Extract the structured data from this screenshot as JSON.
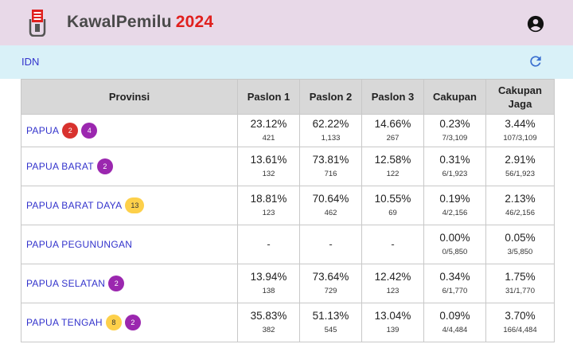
{
  "app": {
    "name": "KawalPemilu",
    "year": "2024",
    "colors": {
      "header_bg": "#e8d9e8",
      "subbar_bg": "#d9f1f8",
      "year": "#e0201e",
      "link": "#3333cc"
    },
    "icons": {
      "logo": "ballot-box-icon",
      "account": "account-circle-icon",
      "refresh": "refresh-icon"
    }
  },
  "breadcrumb": {
    "root": "IDN"
  },
  "table": {
    "headers": {
      "provinsi": "Provinsi",
      "paslon1": "Paslon 1",
      "paslon2": "Paslon 2",
      "paslon3": "Paslon 3",
      "cakupan": "Cakupan",
      "cakupan_jaga_1": "Cakupan",
      "cakupan_jaga_2": "Jaga"
    },
    "rows": [
      {
        "name": "PAPUA",
        "badges": [
          {
            "text": "2",
            "color": "red"
          },
          {
            "text": "4",
            "color": "purple"
          }
        ],
        "p1": "23.12%",
        "p1c": "421",
        "p2": "62.22%",
        "p2c": "1,133",
        "p3": "14.66%",
        "p3c": "267",
        "cak": "0.23%",
        "cakc": "7/3,109",
        "jaga": "3.44%",
        "jagac": "107/3,109"
      },
      {
        "name": "PAPUA BARAT",
        "badges": [
          {
            "text": "2",
            "color": "purple"
          }
        ],
        "p1": "13.61%",
        "p1c": "132",
        "p2": "73.81%",
        "p2c": "716",
        "p3": "12.58%",
        "p3c": "122",
        "cak": "0.31%",
        "cakc": "6/1,923",
        "jaga": "2.91%",
        "jagac": "56/1,923"
      },
      {
        "name": "PAPUA BARAT DAYA",
        "badges": [
          {
            "text": "13",
            "color": "yellow"
          }
        ],
        "p1": "18.81%",
        "p1c": "123",
        "p2": "70.64%",
        "p2c": "462",
        "p3": "10.55%",
        "p3c": "69",
        "cak": "0.19%",
        "cakc": "4/2,156",
        "jaga": "2.13%",
        "jagac": "46/2,156"
      },
      {
        "name": "PAPUA PEGUNUNGAN",
        "badges": [],
        "p1": "-",
        "p2": "-",
        "p3": "-",
        "cak": "0.00%",
        "cakc": "0/5,850",
        "jaga": "0.05%",
        "jagac": "3/5,850"
      },
      {
        "name": "PAPUA SELATAN",
        "badges": [
          {
            "text": "2",
            "color": "purple"
          }
        ],
        "p1": "13.94%",
        "p1c": "138",
        "p2": "73.64%",
        "p2c": "729",
        "p3": "12.42%",
        "p3c": "123",
        "cak": "0.34%",
        "cakc": "6/1,770",
        "jaga": "1.75%",
        "jagac": "31/1,770"
      },
      {
        "name": "PAPUA TENGAH",
        "badges": [
          {
            "text": "8",
            "color": "yellow"
          },
          {
            "text": "2",
            "color": "purple"
          }
        ],
        "p1": "35.83%",
        "p1c": "382",
        "p2": "51.13%",
        "p2c": "545",
        "p3": "13.04%",
        "p3c": "139",
        "cak": "0.09%",
        "cakc": "4/4,484",
        "jaga": "3.70%",
        "jagac": "166/4,484"
      }
    ]
  }
}
